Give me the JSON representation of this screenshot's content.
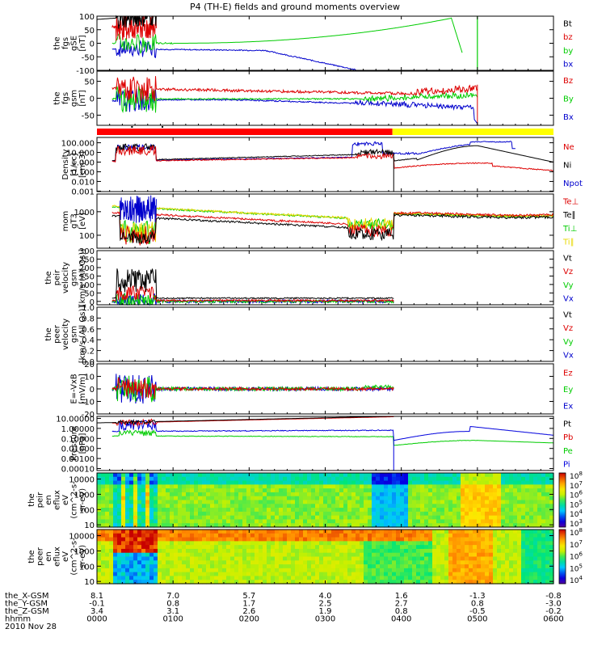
{
  "title": "P4 (TH-E) fields and ground moments overview",
  "colors": {
    "black": "#000000",
    "red": "#dd0000",
    "green": "#00cc00",
    "blue": "#0000cc",
    "yellow": "#e8d800",
    "barRed": "#ff0000",
    "barYellow": "#ffff00",
    "pi": "#0000dd"
  },
  "bottom_axis": {
    "rows": [
      {
        "label": "the_X-GSM",
        "values": [
          "8.1",
          "7.0",
          "5.7",
          "4.0",
          "1.6",
          "-1.3",
          "-0.8"
        ]
      },
      {
        "label": "the_Y-GSM",
        "values": [
          "-0.1",
          "0.8",
          "1.7",
          "2.5",
          "2.7",
          "0.8",
          "-3.0"
        ]
      },
      {
        "label": "the_Z-GSM",
        "values": [
          "3.4",
          "3.1",
          "2.6",
          "1.9",
          "0.8",
          "-0.5",
          "-0.2"
        ]
      },
      {
        "label": "hhmm",
        "values": [
          "0000",
          "0100",
          "0200",
          "0300",
          "0400",
          "0500",
          "0600"
        ]
      }
    ],
    "date": "2010 Nov 28"
  },
  "chart_data": [
    {
      "type": "line",
      "panel": "fgs_gse",
      "ylabel_lines": [
        "the",
        "fgs",
        "gSE",
        "[nT]"
      ],
      "ylim": [
        -100,
        100
      ],
      "yticks": [
        "100",
        "50",
        "0",
        "-50",
        "-100"
      ],
      "x": [
        "00:00",
        "01:00",
        "02:00",
        "03:00",
        "04:00",
        "05:00",
        "06:00"
      ],
      "series": [
        {
          "name": "Bt",
          "color": "black"
        },
        {
          "name": "bz",
          "color": "red"
        },
        {
          "name": "by",
          "color": "green"
        },
        {
          "name": "bx",
          "color": "blue"
        }
      ]
    },
    {
      "type": "line",
      "panel": "fgs_gsm",
      "ylabel_lines": [
        "the",
        "fgs",
        "gsm",
        "[nT]"
      ],
      "ylim": [
        -80,
        80
      ],
      "yticks": [
        "50",
        "0",
        "-50"
      ],
      "series": [
        {
          "name": "Bz",
          "color": "red"
        },
        {
          "name": "By",
          "color": "green"
        },
        {
          "name": "Bx",
          "color": "blue"
        }
      ]
    },
    {
      "type": "bar",
      "panel": "mode_bar",
      "segments": [
        {
          "start": "00:00",
          "end": "03:53",
          "color": "barRed"
        },
        {
          "start": "03:53",
          "end": "06:00",
          "color": "barYellow"
        }
      ]
    },
    {
      "type": "line",
      "panel": "density",
      "log_scale": true,
      "ylabel_lines": [
        "Density",
        "[1/cc]",
        "[cm-3]"
      ],
      "yticks": [
        "100.000",
        "10.000",
        "1.000",
        "0.100",
        "0.010",
        "0.001"
      ],
      "series": [
        {
          "name": "Ne",
          "color": "red"
        },
        {
          "name": "Ni",
          "color": "black"
        },
        {
          "name": "Npot",
          "color": "blue"
        }
      ]
    },
    {
      "type": "line",
      "panel": "temperature",
      "log_scale": true,
      "ylabel_lines": [
        "mom",
        "gT3",
        "[eV]"
      ],
      "yticks": [
        "1000",
        "100"
      ],
      "series": [
        {
          "name": "Te⊥",
          "color": "red"
        },
        {
          "name": "Te∥",
          "color": "black"
        },
        {
          "name": "Ti⊥",
          "color": "green"
        },
        {
          "name": "Ti∥",
          "color": "yellow"
        }
      ]
    },
    {
      "type": "line",
      "panel": "peir_velocity",
      "ylabel_lines": [
        "the",
        "peir",
        "velocity",
        "gsm",
        "[km/s (All Qs)]"
      ],
      "ylim": [
        -20,
        300
      ],
      "yticks": [
        "300",
        "250",
        "200",
        "150",
        "100",
        "50",
        "0"
      ],
      "series": [
        {
          "name": "Vt",
          "color": "black"
        },
        {
          "name": "Vz",
          "color": "red"
        },
        {
          "name": "Vy",
          "color": "green"
        },
        {
          "name": "Vx",
          "color": "blue"
        }
      ]
    },
    {
      "type": "line",
      "panel": "peer_velocity",
      "ylabel_lines": [
        "the",
        "peer",
        "velocity",
        "gsm",
        "[km/s (All Qs)]"
      ],
      "ylim": [
        0,
        1
      ],
      "yticks": [
        "1.0",
        "0.8",
        "0.6",
        "0.4",
        "0.2",
        "0.0"
      ],
      "series": [
        {
          "name": "Vt",
          "color": "black"
        },
        {
          "name": "Vz",
          "color": "red"
        },
        {
          "name": "Vy",
          "color": "green"
        },
        {
          "name": "Vx",
          "color": "blue"
        }
      ]
    },
    {
      "type": "line",
      "panel": "efield",
      "ylabel_lines": [
        "E=-VxB",
        "[mV/m]"
      ],
      "ylim": [
        -20,
        20
      ],
      "yticks": [
        "20",
        "10",
        "0",
        "-10",
        "-20"
      ],
      "series": [
        {
          "name": "Ez",
          "color": "red"
        },
        {
          "name": "Ey",
          "color": "green"
        },
        {
          "name": "Ex",
          "color": "blue"
        }
      ]
    },
    {
      "type": "line",
      "panel": "pressure",
      "log_scale": true,
      "ylabel_lines": [
        "Pressure",
        "[nPa]"
      ],
      "yticks": [
        "10.00000",
        "1.00000",
        "0.10000",
        "0.01000",
        "0.00100",
        "0.00010"
      ],
      "series": [
        {
          "name": "Pt",
          "color": "black"
        },
        {
          "name": "Pb",
          "color": "red"
        },
        {
          "name": "Pe",
          "color": "green"
        },
        {
          "name": "Pi",
          "color": "pi"
        }
      ]
    },
    {
      "type": "heatmap",
      "panel": "peir_spec",
      "log_scale": true,
      "ylabel_lines": [
        "the",
        "peir",
        "en",
        "eflux",
        "eV",
        "(cm^2-s-",
        "sr-eV)"
      ],
      "yticks": [
        "10000",
        "1000",
        "100",
        "10"
      ],
      "colorbar_ticks": [
        "10^8",
        "10^7",
        "10^6",
        "10^5",
        "10^4",
        "10^3"
      ]
    },
    {
      "type": "heatmap",
      "panel": "peer_spec",
      "log_scale": true,
      "ylabel_lines": [
        "the",
        "peer",
        "en",
        "eflux",
        "eV",
        "(cm^2-s-",
        "sr-eV)"
      ],
      "yticks": [
        "10000",
        "1000",
        "100",
        "10"
      ],
      "colorbar_ticks": [
        "10^8",
        "10^7",
        "10^6",
        "10^5",
        "10^4"
      ]
    }
  ]
}
